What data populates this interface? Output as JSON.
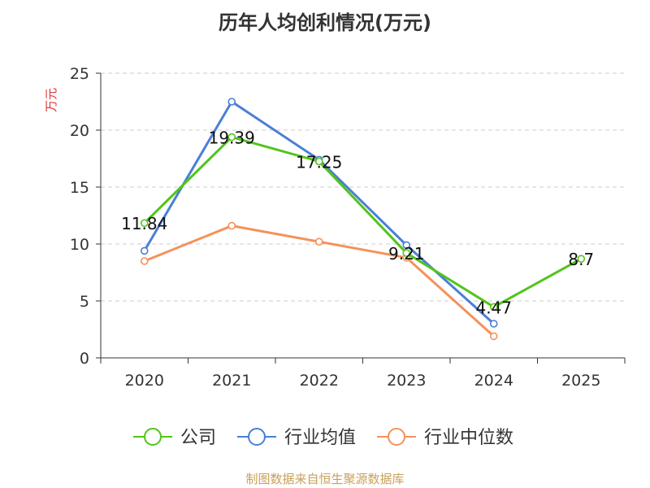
{
  "chart_data": {
    "type": "line",
    "title": "历年人均创利情况(万元)",
    "ylabel": "万元",
    "xlabel": "",
    "ylim": [
      0,
      25
    ],
    "yticks": [
      0,
      5,
      10,
      15,
      20,
      25
    ],
    "grid": true,
    "legend_position": "bottom",
    "categories": [
      "2020",
      "2021",
      "2022",
      "2023",
      "2024",
      "2025"
    ],
    "series": [
      {
        "name": "公司",
        "color": "#52c41a",
        "values": [
          11.84,
          19.39,
          17.25,
          9.21,
          4.47,
          8.7
        ],
        "labels": [
          "11.84",
          "19.39",
          "17.25",
          "9.21",
          "4.47",
          "8.7"
        ]
      },
      {
        "name": "行业均值",
        "color": "#4a7fd6",
        "values": [
          9.4,
          22.5,
          17.4,
          9.9,
          3.0,
          null
        ]
      },
      {
        "name": "行业中位数",
        "color": "#f5915a",
        "values": [
          8.5,
          11.6,
          10.2,
          8.8,
          1.9,
          null
        ]
      }
    ]
  },
  "source_note": "制图数据来自恒生聚源数据库"
}
